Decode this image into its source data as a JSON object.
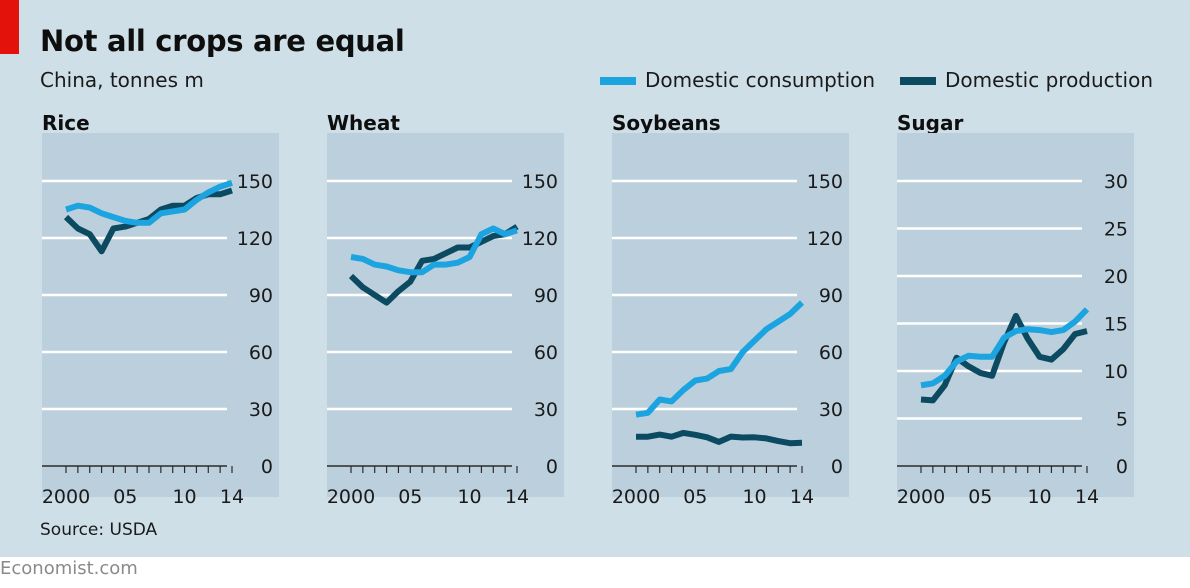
{
  "header": {
    "title": "Not all crops are equal",
    "subtitle": "China, tonnes m"
  },
  "legend": {
    "items": [
      {
        "label": "Domestic consumption",
        "color": "#1ba4e0"
      },
      {
        "label": "Domestic production",
        "color": "#0b4a61"
      }
    ]
  },
  "footer": {
    "source": "Source: USDA",
    "brand": "Economist.com"
  },
  "colors": {
    "background": "#cfdfe8",
    "plot_area": "#bccfdc",
    "accent_red": "#e3120b",
    "consumption": "#1ba4e0",
    "production": "#0b4a61"
  },
  "chart_data": [
    {
      "type": "line",
      "title": "Rice",
      "ylim": [
        0,
        150
      ],
      "yticks": [
        0,
        30,
        60,
        90,
        120,
        150
      ],
      "xticks": [
        2000,
        2005,
        2010,
        2014
      ],
      "xtick_labels": [
        "2000",
        "05",
        "10",
        "14"
      ],
      "x": [
        2000,
        2001,
        2002,
        2003,
        2004,
        2005,
        2006,
        2007,
        2008,
        2009,
        2010,
        2011,
        2012,
        2013,
        2014
      ],
      "series": [
        {
          "name": "Domestic consumption",
          "values": [
            135,
            137,
            136,
            133,
            131,
            129,
            128,
            128,
            133,
            134,
            135,
            140,
            144,
            147,
            149
          ]
        },
        {
          "name": "Domestic production",
          "values": [
            131,
            125,
            122,
            113,
            125,
            126,
            128,
            130,
            135,
            137,
            137,
            141,
            143,
            143,
            145
          ]
        }
      ]
    },
    {
      "type": "line",
      "title": "Wheat",
      "ylim": [
        0,
        150
      ],
      "yticks": [
        0,
        30,
        60,
        90,
        120,
        150
      ],
      "xticks": [
        2000,
        2005,
        2010,
        2014
      ],
      "xtick_labels": [
        "2000",
        "05",
        "10",
        "14"
      ],
      "x": [
        2000,
        2001,
        2002,
        2003,
        2004,
        2005,
        2006,
        2007,
        2008,
        2009,
        2010,
        2011,
        2012,
        2013,
        2014
      ],
      "series": [
        {
          "name": "Domestic consumption",
          "values": [
            110,
            109,
            106,
            105,
            103,
            102,
            102,
            106,
            106,
            107,
            110,
            122,
            125,
            122,
            124
          ]
        },
        {
          "name": "Domestic production",
          "values": [
            100,
            94,
            90,
            86,
            92,
            97,
            108,
            109,
            112,
            115,
            115,
            118,
            121,
            122,
            126
          ]
        }
      ]
    },
    {
      "type": "line",
      "title": "Soybeans",
      "ylim": [
        0,
        150
      ],
      "yticks": [
        0,
        30,
        60,
        90,
        120,
        150
      ],
      "xticks": [
        2000,
        2005,
        2010,
        2014
      ],
      "xtick_labels": [
        "2000",
        "05",
        "10",
        "14"
      ],
      "x": [
        2000,
        2001,
        2002,
        2003,
        2004,
        2005,
        2006,
        2007,
        2008,
        2009,
        2010,
        2011,
        2012,
        2013,
        2014
      ],
      "series": [
        {
          "name": "Domestic consumption",
          "values": [
            27,
            28,
            35,
            34,
            40,
            45,
            46,
            50,
            51,
            60,
            66,
            72,
            76,
            80,
            86
          ]
        },
        {
          "name": "Domestic production",
          "values": [
            15.4,
            15.4,
            16.5,
            15.4,
            17.4,
            16.4,
            15.1,
            12.7,
            15.5,
            15.0,
            15.1,
            14.5,
            13.1,
            12.0,
            12.2
          ]
        }
      ]
    },
    {
      "type": "line",
      "title": "Sugar",
      "ylim": [
        0,
        30
      ],
      "yticks": [
        0,
        5,
        10,
        15,
        20,
        25,
        30
      ],
      "xticks": [
        2000,
        2005,
        2010,
        2014
      ],
      "xtick_labels": [
        "2000",
        "05",
        "10",
        "14"
      ],
      "x": [
        2000,
        2001,
        2002,
        2003,
        2004,
        2005,
        2006,
        2007,
        2008,
        2009,
        2010,
        2011,
        2012,
        2013,
        2014
      ],
      "series": [
        {
          "name": "Domestic consumption",
          "values": [
            8.5,
            8.7,
            9.5,
            11.0,
            11.6,
            11.5,
            11.5,
            13.5,
            14.2,
            14.4,
            14.3,
            14.1,
            14.3,
            15.2,
            16.5
          ]
        },
        {
          "name": "Domestic production",
          "values": [
            7.0,
            6.9,
            8.5,
            11.4,
            10.5,
            9.8,
            9.5,
            13.0,
            15.8,
            13.4,
            11.5,
            11.2,
            12.3,
            13.9,
            14.2
          ]
        }
      ]
    }
  ]
}
